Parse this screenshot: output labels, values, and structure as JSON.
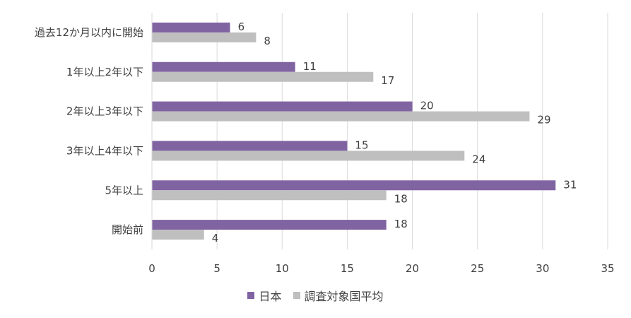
{
  "chart_data": {
    "type": "bar",
    "orientation": "horizontal",
    "categories": [
      "過去12か月以内に開始",
      "1年以上2年以下",
      "2年以上3年以下",
      "3年以上4年以下",
      "5年以上",
      "開始前"
    ],
    "series": [
      {
        "name": "日本",
        "values": [
          6,
          11,
          20,
          15,
          31,
          18
        ],
        "color": "#8064a2"
      },
      {
        "name": "調査対象国平均",
        "values": [
          8,
          17,
          29,
          24,
          18,
          4
        ],
        "color": "#bfbfbf"
      }
    ],
    "xlim": [
      0,
      35
    ],
    "xticks": [
      0,
      5,
      10,
      15,
      20,
      25,
      30,
      35
    ],
    "grid": true,
    "legend_position": "bottom"
  }
}
